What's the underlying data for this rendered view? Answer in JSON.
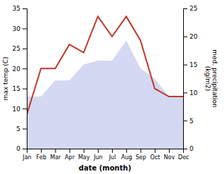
{
  "chart_data": {
    "type": "line",
    "categories": [
      "Jan",
      "Feb",
      "Mar",
      "Apr",
      "May",
      "Jun",
      "Jul",
      "Aug",
      "Sep",
      "Oct",
      "Nov",
      "Dec"
    ],
    "series": [
      {
        "type": "area",
        "color": "#b0b8e8",
        "values": [
          13.0,
          13.0,
          17.0,
          17.0,
          21.0,
          22.0,
          22.0,
          27.0,
          20.0,
          17.5,
          13.0,
          13.0
        ]
      },
      {
        "type": "line",
        "color": "#c0392b",
        "values": [
          8.5,
          20.0,
          20.0,
          26.0,
          24.0,
          33.0,
          28.0,
          33.0,
          27.0,
          15.0,
          13.0,
          13.0
        ]
      }
    ],
    "xlabel": "date (month)",
    "ylabel": "max temp (C)",
    "y2label": "med. precipitation\n(kg/m2)",
    "ylim": [
      0,
      35
    ],
    "yticks": [
      0,
      5,
      10,
      15,
      20,
      25,
      30,
      35
    ],
    "y2lim": [
      0,
      25
    ],
    "y2ticks": [
      0,
      5,
      10,
      15,
      20,
      25
    ],
    "grid": false
  }
}
